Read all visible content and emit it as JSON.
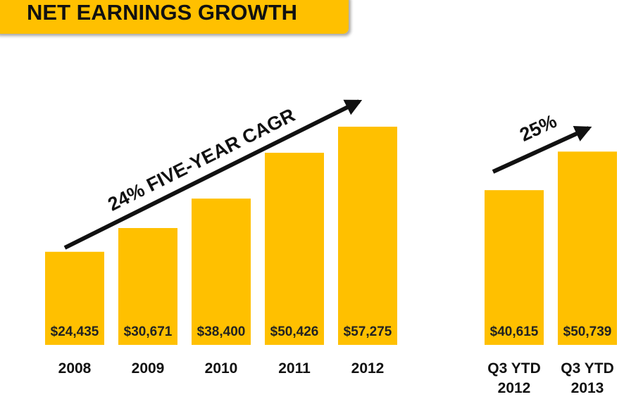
{
  "chart_data": {
    "type": "bar",
    "title": "NET EARNINGS GROWTH",
    "categories": [
      "2008",
      "2009",
      "2010",
      "2011",
      "2012",
      "Q3 YTD 2012",
      "Q3 YTD 2013"
    ],
    "values": [
      24435,
      30671,
      38400,
      50426,
      57275,
      40615,
      50739
    ],
    "value_labels": [
      "$24,435",
      "$30,671",
      "$38,400",
      "$50,426",
      "$57,275",
      "$40,615",
      "$50,739"
    ],
    "color": "#ffc000",
    "annotations": [
      "24% FIVE-YEAR CAGR",
      "25%"
    ]
  }
}
